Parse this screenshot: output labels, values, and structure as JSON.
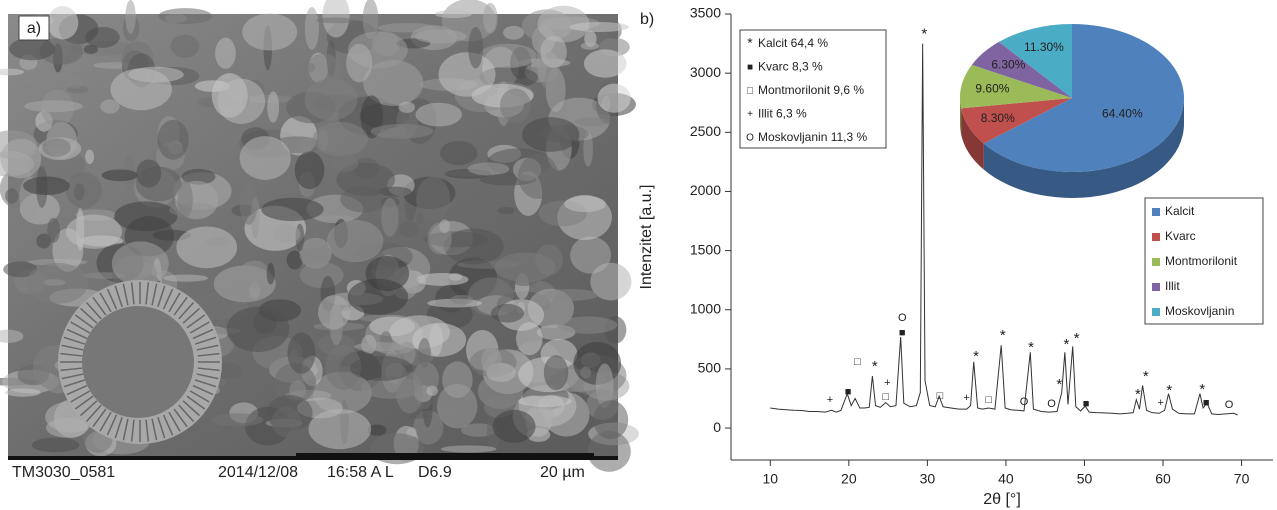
{
  "panel_a": {
    "label": "a)",
    "caption": [
      "TM3030_0581",
      "2014/12/08",
      "16:58 A L",
      "D6.9",
      "20 µm"
    ]
  },
  "chart_data": [
    {
      "type": "line",
      "label": "b)",
      "xlabel": "2θ [°]",
      "ylabel": "Intenzitet [a.u.]",
      "color": "#333333",
      "x": [
        10,
        11,
        12,
        13,
        14,
        15,
        16,
        17,
        17.8,
        18.4,
        19,
        19.8,
        20.3,
        20.8,
        21.4,
        22,
        22.6,
        23,
        23.4,
        24,
        24.7,
        25.3,
        26,
        26.6,
        27,
        27.8,
        28.6,
        29.1,
        29.4,
        29.7,
        30.3,
        31,
        31.5,
        32,
        33,
        34,
        35,
        35.5,
        35.9,
        36.4,
        37,
        37.8,
        38.6,
        39.4,
        39.9,
        40.6,
        41.5,
        42.3,
        43.1,
        43.5,
        44.5,
        45.5,
        46.5,
        47.1,
        47.5,
        47.9,
        48.5,
        48.9,
        49.5,
        50.1,
        50.6,
        51.5,
        52.5,
        53.5,
        54.5,
        55.5,
        56.2,
        56.6,
        57,
        57.4,
        57.9,
        58.6,
        59.5,
        60.2,
        60.7,
        61.2,
        62,
        63,
        64,
        64.7,
        65.1,
        65.6,
        66.2,
        67,
        68,
        69,
        69.5
      ],
      "values": [
        170,
        160,
        155,
        150,
        148,
        140,
        140,
        135,
        150,
        135,
        150,
        290,
        190,
        250,
        170,
        170,
        175,
        440,
        190,
        175,
        215,
        180,
        190,
        770,
        210,
        180,
        190,
        300,
        3250,
        400,
        190,
        180,
        270,
        180,
        170,
        160,
        160,
        190,
        560,
        170,
        160,
        170,
        160,
        700,
        170,
        155,
        150,
        145,
        640,
        160,
        140,
        135,
        140,
        300,
        640,
        200,
        690,
        180,
        145,
        185,
        135,
        130,
        128,
        125,
        120,
        125,
        130,
        240,
        160,
        360,
        150,
        130,
        125,
        150,
        290,
        160,
        125,
        120,
        120,
        290,
        170,
        210,
        120,
        115,
        120,
        125,
        110
      ],
      "xlim": [
        5,
        74
      ],
      "ylim": [
        -270,
        3500
      ],
      "xticks": [
        10,
        20,
        30,
        40,
        50,
        60,
        70
      ],
      "yticks": [
        0,
        500,
        1000,
        1500,
        2000,
        2500,
        3000,
        3500
      ],
      "annotations": [
        {
          "text": "+",
          "x": 17.6,
          "y": 237
        },
        {
          "text": "■",
          "x": 19.9,
          "y": 305
        },
        {
          "text": "□",
          "x": 21.1,
          "y": 558
        },
        {
          "text": "*",
          "x": 23.3,
          "y": 516
        },
        {
          "text": "+",
          "x": 24.9,
          "y": 381
        },
        {
          "text": "□",
          "x": 24.7,
          "y": 262
        },
        {
          "text": "O",
          "x": 26.8,
          "y": 930
        },
        {
          "text": "■",
          "x": 26.8,
          "y": 804
        },
        {
          "text": "*",
          "x": 29.6,
          "y": 3325
        },
        {
          "text": "□",
          "x": 31.6,
          "y": 271
        },
        {
          "text": "+",
          "x": 35.0,
          "y": 254
        },
        {
          "text": "*",
          "x": 36.2,
          "y": 600
        },
        {
          "text": "□",
          "x": 37.8,
          "y": 237
        },
        {
          "text": "*",
          "x": 39.6,
          "y": 778
        },
        {
          "text": "O",
          "x": 42.3,
          "y": 220
        },
        {
          "text": "*",
          "x": 43.2,
          "y": 677
        },
        {
          "text": "O",
          "x": 45.8,
          "y": 203
        },
        {
          "text": "*",
          "x": 46.8,
          "y": 364
        },
        {
          "text": "*",
          "x": 47.7,
          "y": 702
        },
        {
          "text": "*",
          "x": 49.0,
          "y": 753
        },
        {
          "text": "■",
          "x": 50.2,
          "y": 203
        },
        {
          "text": "*",
          "x": 56.8,
          "y": 279
        },
        {
          "text": "*",
          "x": 57.8,
          "y": 431
        },
        {
          "text": "+",
          "x": 59.7,
          "y": 212
        },
        {
          "text": "*",
          "x": 60.8,
          "y": 313
        },
        {
          "text": "*",
          "x": 65.0,
          "y": 321
        },
        {
          "text": "■",
          "x": 65.5,
          "y": 212
        },
        {
          "text": "O",
          "x": 68.4,
          "y": 195
        }
      ],
      "phase_legend": [
        {
          "symbol": "*",
          "label": "Kalcit 64,4 %"
        },
        {
          "symbol": "■",
          "label": "Kvarc 8,3 %"
        },
        {
          "symbol": "□",
          "label": "Montmorilonit 9,6 %"
        },
        {
          "symbol": "+",
          "label": "Illit 6,3 %"
        },
        {
          "symbol": "O",
          "label": "Moskovljanin 11,3 %"
        }
      ]
    },
    {
      "type": "pie",
      "categories": [
        "Kalcit",
        "Kvarc",
        "Montmorilonit",
        "Illit",
        "Moskovljanin"
      ],
      "values": [
        64.4,
        8.3,
        9.6,
        6.3,
        11.3
      ],
      "value_labels": [
        "64.40%",
        "8.30%",
        "9.60%",
        "6.30%",
        "11.30%"
      ],
      "colors": [
        "#4f81bd",
        "#c0504d",
        "#9bbb59",
        "#8064a2",
        "#4bacc6"
      ]
    }
  ]
}
